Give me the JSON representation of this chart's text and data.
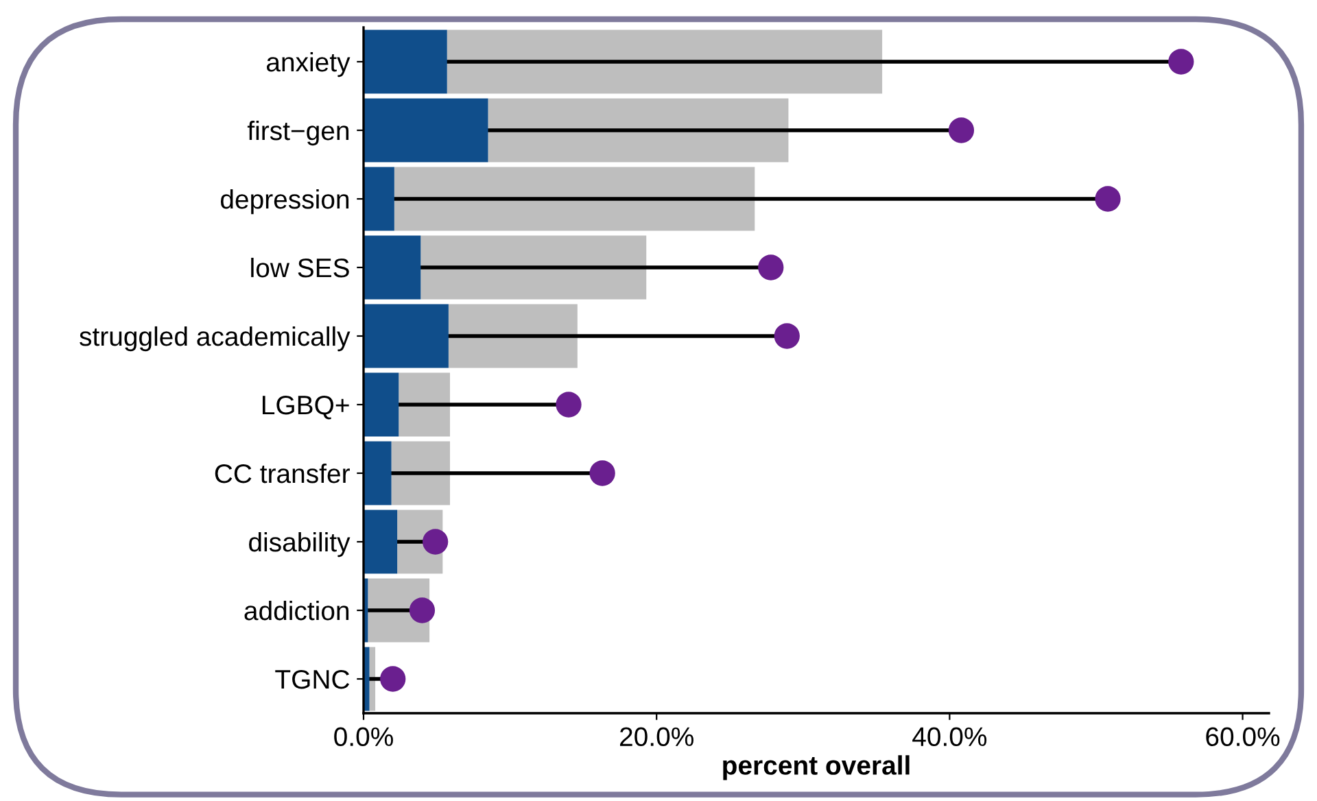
{
  "chart_data": {
    "type": "bar",
    "orientation": "horizontal",
    "stacked": true,
    "xlabel": "percent overall",
    "categories": [
      "anxiety",
      "first−gen",
      "depression",
      "low SES",
      "struggled academically",
      "LGBQ+",
      "CC transfer",
      "disability",
      "addiction",
      "TGNC"
    ],
    "series": [
      {
        "color": "#104e8b",
        "values": [
          5.7,
          8.5,
          2.1,
          3.9,
          5.8,
          2.4,
          1.9,
          2.3,
          0.3,
          0.4
        ]
      },
      {
        "color": "#bebebe",
        "values": [
          29.7,
          20.5,
          24.6,
          15.4,
          8.8,
          3.5,
          4.0,
          3.1,
          4.2,
          0.4
        ]
      },
      {
        "type": "lollipop",
        "color": "#6a1f8f",
        "values": [
          55.8,
          40.8,
          50.8,
          27.8,
          28.9,
          14.0,
          16.3,
          4.9,
          4.0,
          2.0
        ]
      }
    ],
    "xlim": [
      0,
      61.8
    ],
    "xticks": [
      {
        "value": 0,
        "label": "0.0%"
      },
      {
        "value": 20,
        "label": "20.0%"
      },
      {
        "value": 40,
        "label": "40.0%"
      },
      {
        "value": 60,
        "label": "60.0%"
      }
    ],
    "marker": "circle"
  }
}
